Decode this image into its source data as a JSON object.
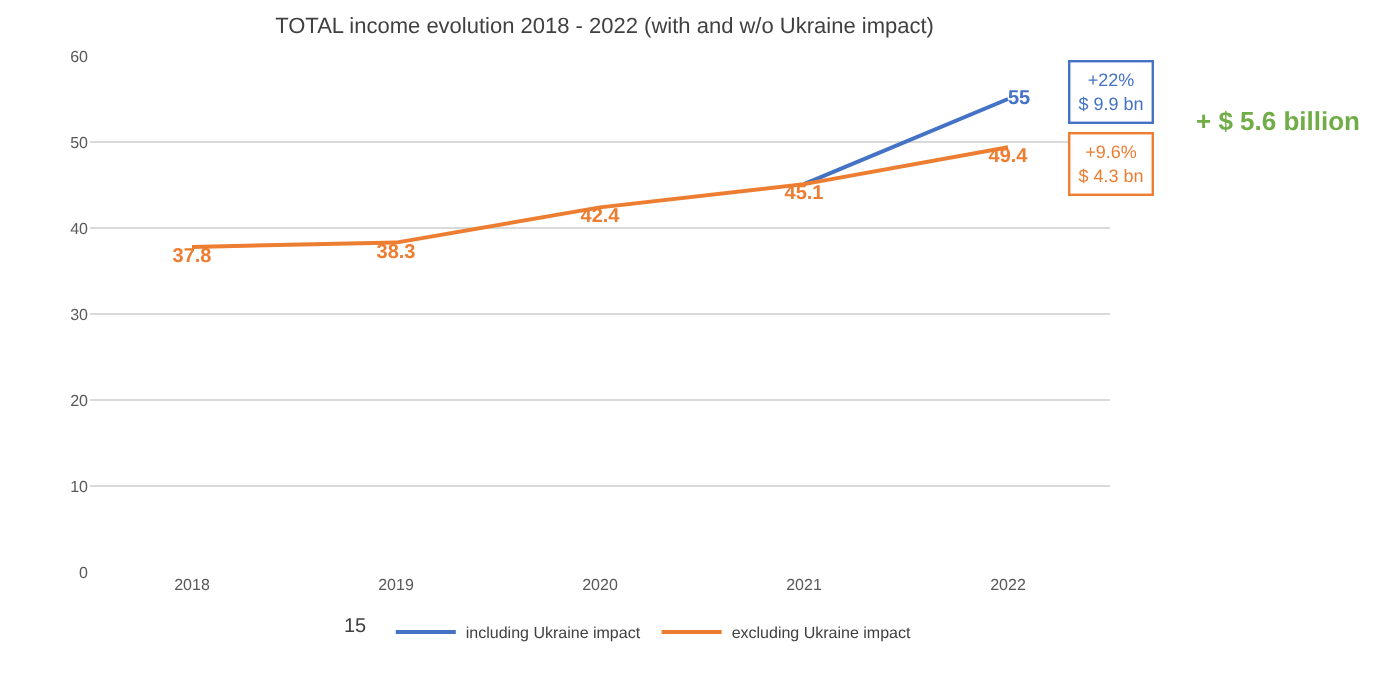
{
  "chart_data": {
    "type": "line",
    "title": "TOTAL income evolution 2018 - 2022 (with and w/o Ukraine impact)",
    "categories": [
      "2018",
      "2019",
      "2020",
      "2021",
      "2022"
    ],
    "series": [
      {
        "name": "including Ukraine impact",
        "color": "#4472c4",
        "values": [
          null,
          null,
          null,
          45.1,
          55
        ],
        "value_labels": [
          null,
          null,
          null,
          null,
          "55"
        ]
      },
      {
        "name": "excluding Ukraine impact",
        "color": "#ed7d31",
        "values": [
          37.8,
          38.3,
          42.4,
          45.1,
          49.4
        ],
        "value_labels": [
          "37.8",
          "38.3",
          "42.4",
          "45.1",
          "49.4"
        ]
      }
    ],
    "ylim": [
      0,
      60
    ],
    "yticks": [
      0,
      10,
      20,
      30,
      40,
      50,
      60
    ],
    "grid": "y",
    "legend": "bottom",
    "marker": "none",
    "line_style": "solid",
    "annotations": [
      "+22%\n$ 9.9 bn",
      "+9.6%\n$ 4.3 bn",
      "+ $ 5.6 billion",
      "15"
    ]
  }
}
